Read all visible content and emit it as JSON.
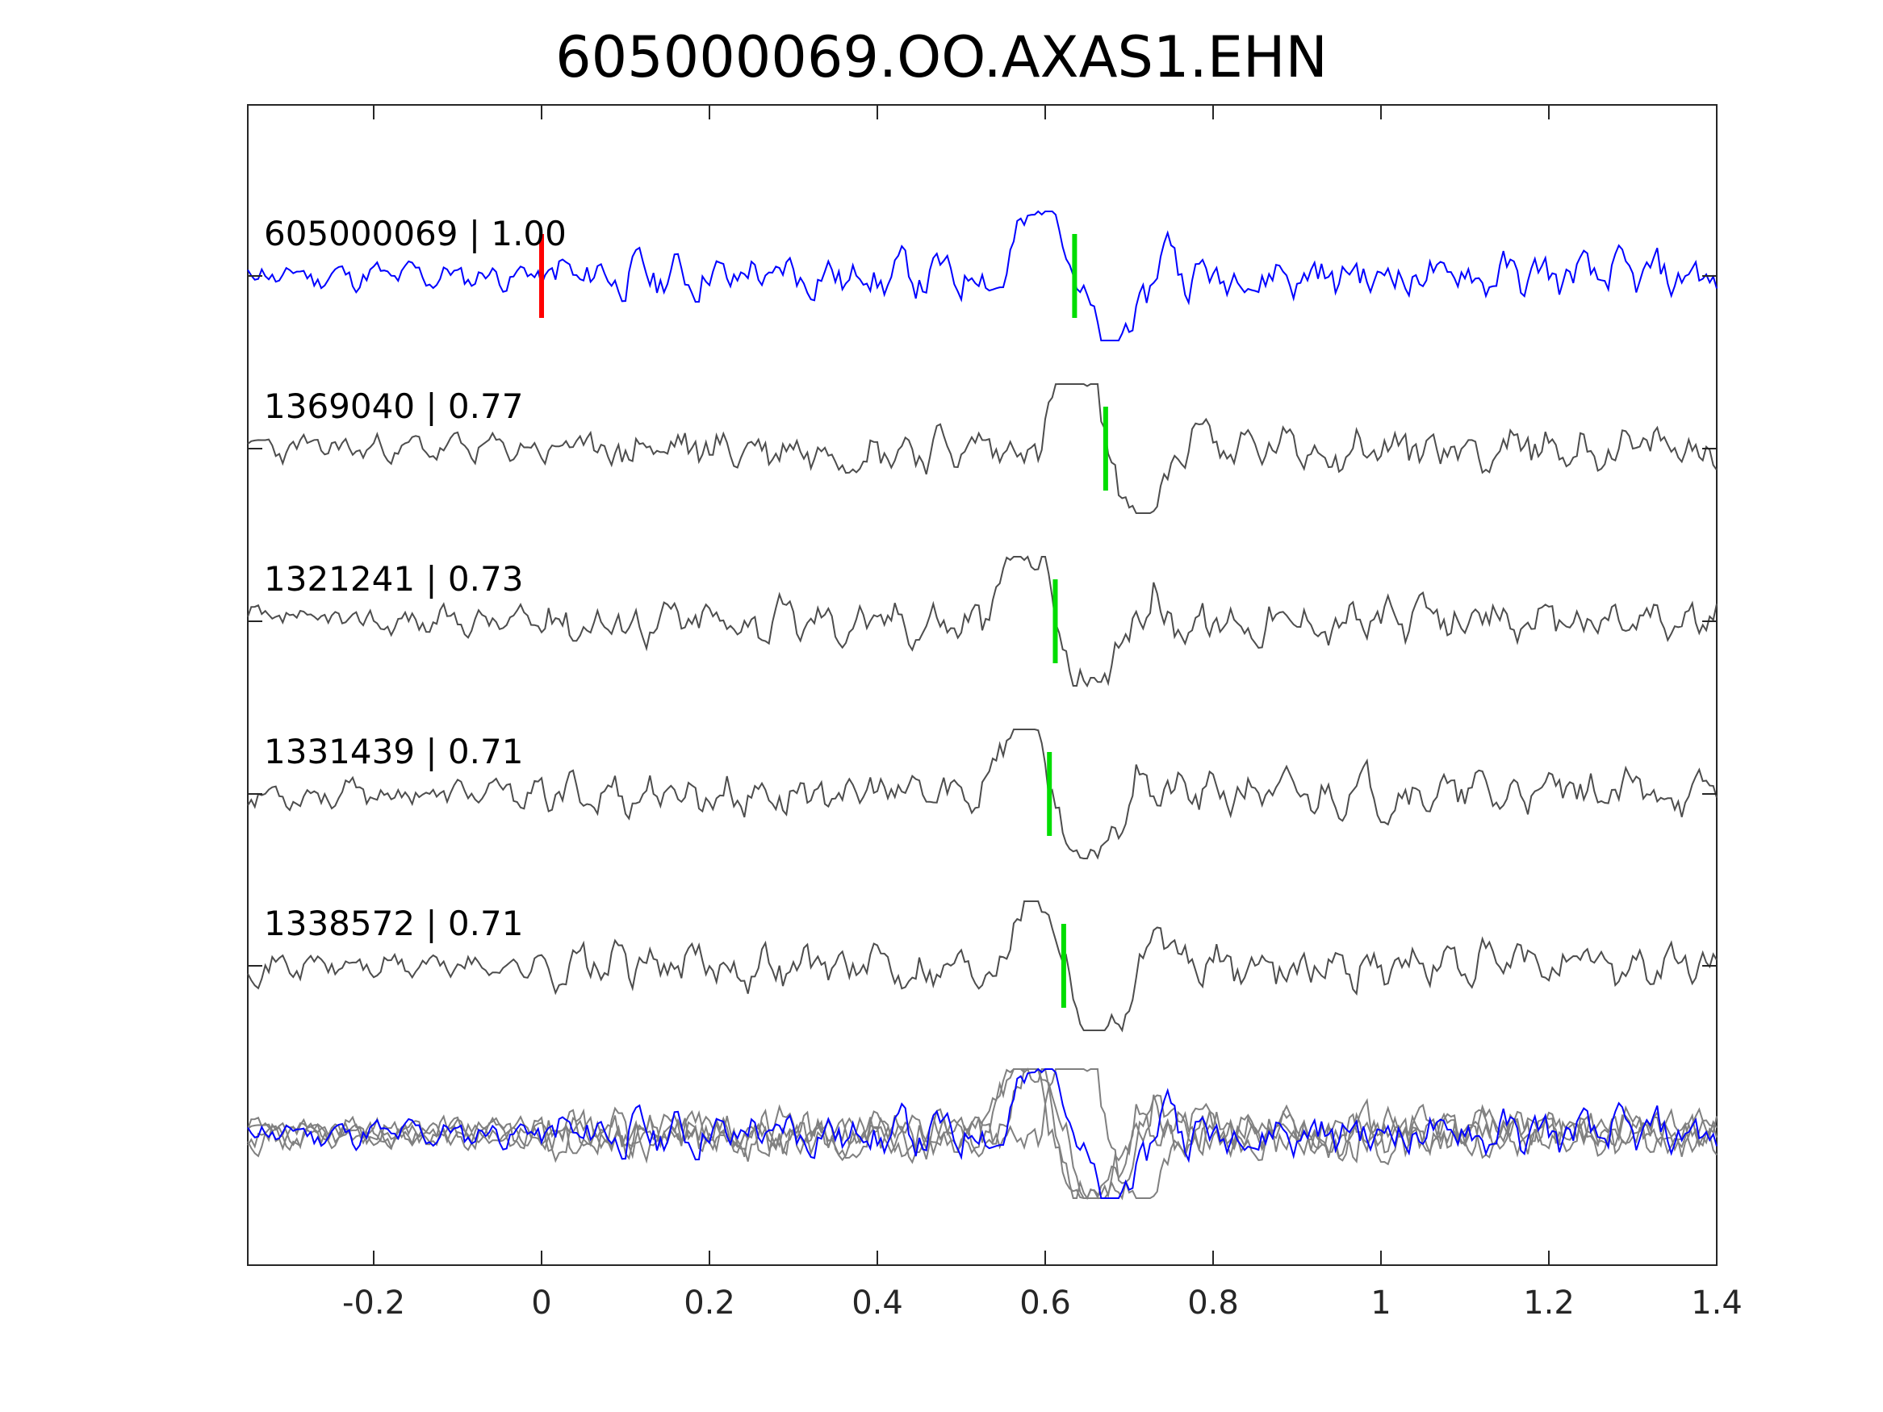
{
  "chart_data": {
    "type": "line",
    "title": "605000069.OO.AXAS1.EHN",
    "xlabel": "",
    "ylabel": "",
    "xlim": [
      -0.35,
      1.4
    ],
    "xticks": [
      -0.2,
      0,
      0.2,
      0.4,
      0.6,
      0.8,
      1,
      1.2,
      1.4
    ],
    "xtick_labels": [
      "-0.2",
      "0",
      "0.2",
      "0.4",
      "0.6",
      "0.8",
      "1",
      "1.2",
      "1.4"
    ],
    "grid": false,
    "colors": {
      "template": "#0000ff",
      "match": "#4d4d4d",
      "overlay": "#808080",
      "reference_pick": "#ff0000",
      "pick": "#00dd00"
    },
    "traces": [
      {
        "id": "605000069",
        "label": "605000069 | 1.00",
        "cc": 1.0,
        "color": "#0000ff",
        "pick": 0.635,
        "reference_pick": 0.0,
        "noise_seed": 11
      },
      {
        "id": "1369040",
        "label": "1369040 | 0.77",
        "cc": 0.77,
        "color": "#4d4d4d",
        "pick": 0.672,
        "noise_seed": 23
      },
      {
        "id": "1321241",
        "label": "1321241 | 0.73",
        "cc": 0.73,
        "color": "#4d4d4d",
        "pick": 0.612,
        "noise_seed": 37
      },
      {
        "id": "1331439",
        "label": "1331439 | 0.71",
        "cc": 0.71,
        "color": "#4d4d4d",
        "pick": 0.605,
        "noise_seed": 53
      },
      {
        "id": "1338572",
        "label": "1338572 | 0.71",
        "cc": 0.71,
        "color": "#4d4d4d",
        "pick": 0.622,
        "noise_seed": 71
      }
    ],
    "overlay": {
      "description_visible": false
    }
  }
}
